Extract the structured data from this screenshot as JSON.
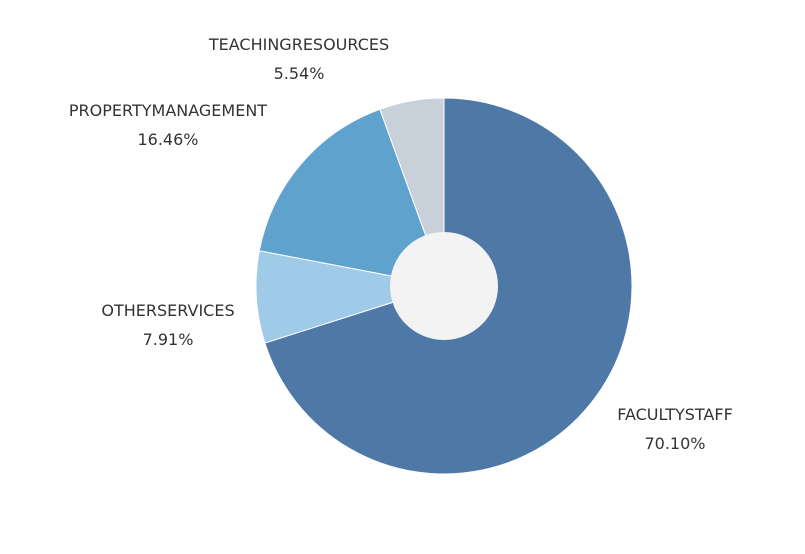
{
  "chart_data": {
    "type": "pie",
    "donut": true,
    "title": "",
    "slices": [
      {
        "label": "FACULTYSTAFF",
        "percent_label": "70.10%",
        "value": 70.1,
        "color": "#4e79a7"
      },
      {
        "label": "OTHERSERVICES",
        "percent_label": "7.91%",
        "value": 7.91,
        "color": "#a0cbe8"
      },
      {
        "label": "PROPERTYMANAGEMENT",
        "percent_label": "16.46%",
        "value": 16.46,
        "color": "#5fa2ce"
      },
      {
        "label": "TEACHINGRESOURCES",
        "percent_label": "5.54%",
        "value": 5.54,
        "color": "#c8d0d9"
      }
    ],
    "center_color": "#f3f3f3",
    "start_angle_deg": 0,
    "direction": "clockwise",
    "legend": "none"
  }
}
